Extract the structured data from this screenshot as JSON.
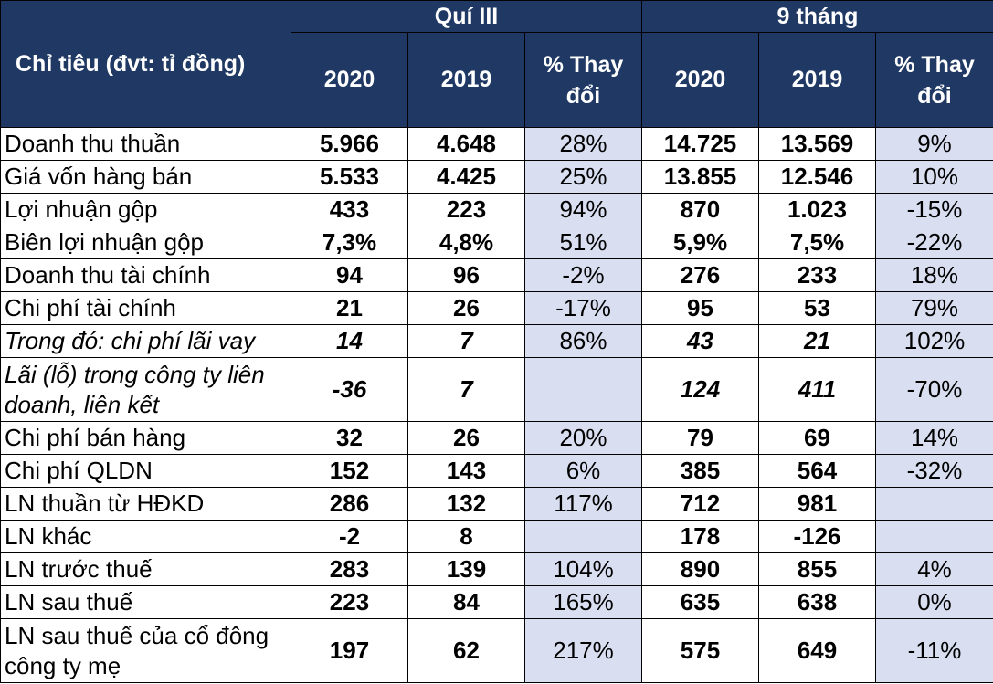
{
  "header": {
    "label": "Chỉ tiêu (đvt: tỉ đồng)",
    "q3": {
      "title": "Quí III",
      "col2020": "2020",
      "col2019": "2019",
      "change": "% Thay đổi"
    },
    "m9": {
      "title": "9 tháng",
      "col2020": "2020",
      "col2019": "2019",
      "change": "% Thay đổi"
    }
  },
  "rows": [
    {
      "label": "Doanh thu thuần",
      "q3_2020": "5.966",
      "q3_2019": "4.648",
      "q3_change": "28%",
      "m9_2020": "14.725",
      "m9_2019": "13.569",
      "m9_change": "9%"
    },
    {
      "label": "Giá vốn hàng bán",
      "q3_2020": "5.533",
      "q3_2019": "4.425",
      "q3_change": "25%",
      "m9_2020": "13.855",
      "m9_2019": "12.546",
      "m9_change": "10%"
    },
    {
      "label": "Lợi nhuận gộp",
      "q3_2020": "433",
      "q3_2019": "223",
      "q3_change": "94%",
      "m9_2020": "870",
      "m9_2019": "1.023",
      "m9_change": "-15%"
    },
    {
      "label": "Biên lợi nhuận gộp",
      "q3_2020": "7,3%",
      "q3_2019": "4,8%",
      "q3_change": "51%",
      "m9_2020": "5,9%",
      "m9_2019": "7,5%",
      "m9_change": "-22%"
    },
    {
      "label": "Doanh thu tài chính",
      "q3_2020": "94",
      "q3_2019": "96",
      "q3_change": "-2%",
      "m9_2020": "276",
      "m9_2019": "233",
      "m9_change": "18%"
    },
    {
      "label": "Chi phí tài chính",
      "q3_2020": "21",
      "q3_2019": "26",
      "q3_change": "-17%",
      "m9_2020": "95",
      "m9_2019": "53",
      "m9_change": "79%"
    },
    {
      "label": "Trong đó: chi phí lãi vay",
      "q3_2020": "14",
      "q3_2019": "7",
      "q3_change": "86%",
      "m9_2020": "43",
      "m9_2019": "21",
      "m9_change": "102%"
    },
    {
      "label": "Lãi (lỗ) trong công ty liên doanh, liên kết",
      "q3_2020": "-36",
      "q3_2019": "7",
      "q3_change": "",
      "m9_2020": "124",
      "m9_2019": "411",
      "m9_change": "-70%"
    },
    {
      "label": "Chi phí bán hàng",
      "q3_2020": "32",
      "q3_2019": "26",
      "q3_change": "20%",
      "m9_2020": "79",
      "m9_2019": "69",
      "m9_change": "14%"
    },
    {
      "label": "Chi phí QLDN",
      "q3_2020": "152",
      "q3_2019": "143",
      "q3_change": "6%",
      "m9_2020": "385",
      "m9_2019": "564",
      "m9_change": "-32%"
    },
    {
      "label": "LN thuần từ HĐKD",
      "q3_2020": "286",
      "q3_2019": "132",
      "q3_change": "117%",
      "m9_2020": "712",
      "m9_2019": "981",
      "m9_change": ""
    },
    {
      "label": "LN khác",
      "q3_2020": "-2",
      "q3_2019": "8",
      "q3_change": "",
      "m9_2020": "178",
      "m9_2019": "-126",
      "m9_change": ""
    },
    {
      "label": "LN trước thuế",
      "q3_2020": "283",
      "q3_2019": "139",
      "q3_change": "104%",
      "m9_2020": "890",
      "m9_2019": "855",
      "m9_change": "4%"
    },
    {
      "label": "LN sau thuế",
      "q3_2020": "223",
      "q3_2019": "84",
      "q3_change": "165%",
      "m9_2020": "635",
      "m9_2019": "638",
      "m9_change": "0%"
    },
    {
      "label": "LN sau thuế của cổ đông công ty mẹ",
      "q3_2020": "197",
      "q3_2019": "62",
      "q3_change": "217%",
      "m9_2020": "575",
      "m9_2019": "649",
      "m9_change": "-11%"
    }
  ]
}
